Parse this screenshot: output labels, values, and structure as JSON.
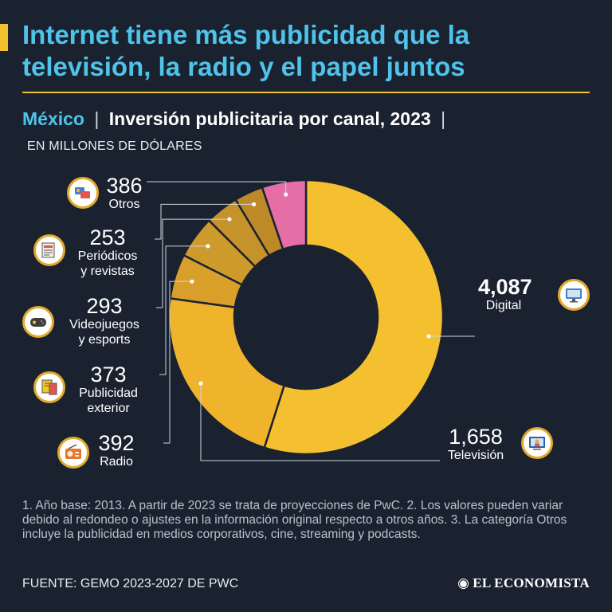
{
  "title": "Internet tiene más publicidad que la televisión, la radio y el papel juntos",
  "subtitle": {
    "country": "México",
    "separator": "|",
    "text": "Inversión publicitaria por canal, 2023",
    "units": "EN MILLONES DE DÓLARES"
  },
  "chart_data": {
    "type": "pie",
    "variant": "donut",
    "title": "Inversión publicitaria por canal, 2023",
    "unit": "millones de dólares",
    "categories": [
      "Digital",
      "Televisión",
      "Radio",
      "Publicidad exterior",
      "Videojuegos y esports",
      "Periódicos y revistas",
      "Otros"
    ],
    "values": [
      4087,
      1658,
      392,
      373,
      293,
      253,
      386
    ],
    "labels": [
      "4,087",
      "1,658",
      "392",
      "373",
      "293",
      "253",
      "386"
    ],
    "colors": [
      "#f5c02f",
      "#f0b32c",
      "#d8a02b",
      "#cf9a2c",
      "#c6922a",
      "#bd8a27",
      "#e46ea5"
    ]
  },
  "labels": {
    "digital": {
      "value": "4,087",
      "name": "Digital",
      "icon": "computer-icon"
    },
    "television": {
      "value": "1,658",
      "name": "Televisión",
      "icon": "tv-icon"
    },
    "radio": {
      "value": "392",
      "name": "Radio",
      "icon": "radio-icon"
    },
    "exterior": {
      "value": "373",
      "name1": "Publicidad",
      "name2": "exterior",
      "icon": "billboard-icon"
    },
    "videojuegos": {
      "value": "293",
      "name1": "Videojuegos",
      "name2": "y esports",
      "icon": "gamepad-icon"
    },
    "periodicos": {
      "value": "253",
      "name1": "Periódicos",
      "name2": "y revistas",
      "icon": "newspaper-icon"
    },
    "otros": {
      "value": "386",
      "name": "Otros",
      "icon": "media-icon"
    }
  },
  "notes": "1. Año base: 2013. A partir de 2023 se trata de proyecciones de PwC. 2. Los valores pueden variar debido al redondeo o ajustes en la información original respecto a otros años. 3. La categoría Otros incluye la publicidad en medios corporativos, cine, streaming y podcasts.",
  "source": "FUENTE: GEMO 2023-2027 DE PWC",
  "brand": "EL ECONOMISTA",
  "brand_mark": "◉"
}
